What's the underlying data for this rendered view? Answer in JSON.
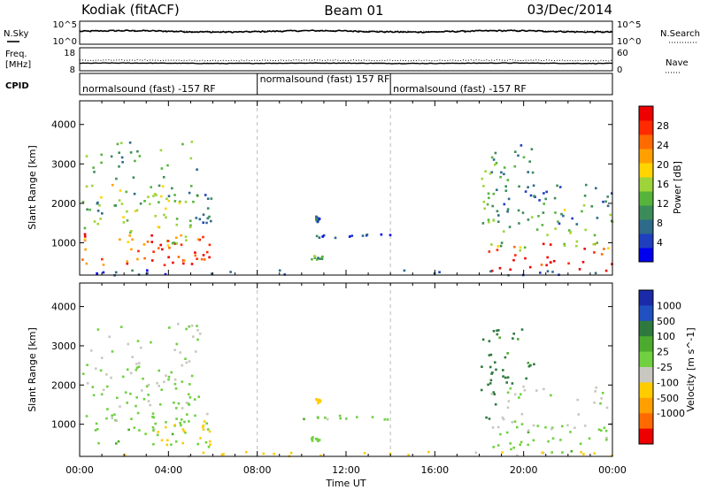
{
  "header": {
    "site": "Kodiak (fitACF)",
    "beam": "Beam 01",
    "date": "03/Dec/2014"
  },
  "status_panels": {
    "nsky": {
      "label": "N.Sky",
      "ticks": [
        "10^5",
        "10^0"
      ]
    },
    "nsearch": {
      "label": "N.Search",
      "ticks": [
        "10^5",
        "10^0"
      ]
    },
    "freq": {
      "label_line1": "Freq.",
      "label_line2": "[MHz]",
      "ticks": [
        "18",
        "8"
      ]
    },
    "nave": {
      "label": "Nave",
      "ticks": [
        "60",
        "0"
      ]
    },
    "cpid": {
      "label": "CPID"
    }
  },
  "programs": [
    {
      "label": "normalsound (fast) -157 RF",
      "start_hour": 0
    },
    {
      "label": "normalsound (fast) 157 RF",
      "start_hour": 8
    },
    {
      "label": "normalsound (fast) -157 RF",
      "start_hour": 14
    }
  ],
  "colors": {
    "power": [
      "#0000ee",
      "#1f3fbf",
      "#2e6a8a",
      "#3c8c5a",
      "#56b43c",
      "#9ed43a",
      "#ffd400",
      "#ffa000",
      "#ff6a00",
      "#ff2a00",
      "#ee0000"
    ],
    "velocity": [
      "#1a2aa8",
      "#2050c0",
      "#2e7a3e",
      "#4caa2e",
      "#70d040",
      "#c8c8c0",
      "#ffcc00",
      "#ffa000",
      "#ff6a00",
      "#ee0000"
    ]
  },
  "chart_data": [
    {
      "type": "heatmap",
      "name": "power",
      "xlabel": "",
      "ylabel": "Slant Range [km]",
      "xlim": [
        0,
        24
      ],
      "ylim": [
        180,
        4600
      ],
      "yticks": [
        1000,
        2000,
        3000,
        4000
      ],
      "colorbar": {
        "label": "Power [dB]",
        "ticks": [
          4,
          8,
          12,
          16,
          20,
          24,
          28
        ],
        "range": [
          0,
          32
        ]
      },
      "scatter_regions": [
        {
          "t0": 0.0,
          "t1": 5.9,
          "r0": 450,
          "r1": 1300,
          "value": 26
        },
        {
          "t0": 0.1,
          "t1": 5.0,
          "r0": 900,
          "r1": 2500,
          "value": 17
        },
        {
          "t0": 0.2,
          "t1": 5.5,
          "r0": 1500,
          "r1": 3600,
          "value": 12
        },
        {
          "t0": 3.2,
          "t1": 5.9,
          "r0": 500,
          "r1": 1100,
          "value": 30
        },
        {
          "t0": 5.3,
          "t1": 5.9,
          "r0": 1400,
          "r1": 2300,
          "value": 6
        },
        {
          "t0": 10.6,
          "t1": 10.8,
          "r0": 1550,
          "r1": 1700,
          "value": 6
        },
        {
          "t0": 10.0,
          "t1": 14.0,
          "r0": 1150,
          "r1": 1250,
          "value": 7
        },
        {
          "t0": 10.4,
          "t1": 10.9,
          "r0": 600,
          "r1": 700,
          "value": 12
        },
        {
          "t0": 18.0,
          "t1": 18.7,
          "r0": 1000,
          "r1": 3200,
          "value": 13
        },
        {
          "t0": 18.3,
          "t1": 24.0,
          "r0": 300,
          "r1": 1000,
          "value": 30
        },
        {
          "t0": 18.3,
          "t1": 24.0,
          "r0": 800,
          "r1": 2000,
          "value": 14
        },
        {
          "t0": 18.8,
          "t1": 24.0,
          "r0": 1500,
          "r1": 2500,
          "value": 8
        },
        {
          "t0": 18.5,
          "t1": 20.5,
          "r0": 2000,
          "r1": 3500,
          "value": 10
        },
        {
          "t0": 0.0,
          "t1": 24.0,
          "r0": 200,
          "r1": 330,
          "value": 5
        }
      ]
    },
    {
      "type": "heatmap",
      "name": "velocity",
      "xlabel": "Time UT",
      "ylabel": "Slant Range [km]",
      "xlim": [
        0,
        24
      ],
      "ylim": [
        180,
        4600
      ],
      "xticks": [
        "00:00",
        "04:00",
        "08:00",
        "12:00",
        "16:00",
        "20:00",
        "00:00"
      ],
      "yticks": [
        1000,
        2000,
        3000,
        4000
      ],
      "colorbar": {
        "label": "Velocity [m s^-1]",
        "ticks": [
          1000,
          500,
          100,
          25,
          -25,
          -100,
          -500,
          -1000
        ]
      },
      "scatter_regions": [
        {
          "t0": 0.0,
          "t1": 5.9,
          "r0": 450,
          "r1": 1300,
          "value": 0
        },
        {
          "t0": 0.1,
          "t1": 5.0,
          "r0": 900,
          "r1": 2500,
          "value": -10
        },
        {
          "t0": 0.2,
          "t1": 5.5,
          "r0": 1500,
          "r1": 3600,
          "value": -30
        },
        {
          "t0": 3.2,
          "t1": 5.9,
          "r0": 500,
          "r1": 1100,
          "value": -150
        },
        {
          "t0": 10.6,
          "t1": 10.8,
          "r0": 1550,
          "r1": 1700,
          "value": -150
        },
        {
          "t0": 10.0,
          "t1": 14.0,
          "r0": 1150,
          "r1": 1250,
          "value": 0
        },
        {
          "t0": 10.4,
          "t1": 10.9,
          "r0": 600,
          "r1": 700,
          "value": 0
        },
        {
          "t0": 18.0,
          "t1": 18.7,
          "r0": 1000,
          "r1": 3200,
          "value": 150
        },
        {
          "t0": 18.3,
          "t1": 24.0,
          "r0": 300,
          "r1": 1000,
          "value": 0
        },
        {
          "t0": 18.3,
          "t1": 24.0,
          "r0": 800,
          "r1": 2000,
          "value": -40
        },
        {
          "t0": 18.5,
          "t1": 20.5,
          "r0": 2000,
          "r1": 3500,
          "value": 120
        },
        {
          "t0": 0.0,
          "t1": 24.0,
          "r0": 200,
          "r1": 330,
          "value": -120
        }
      ]
    }
  ]
}
